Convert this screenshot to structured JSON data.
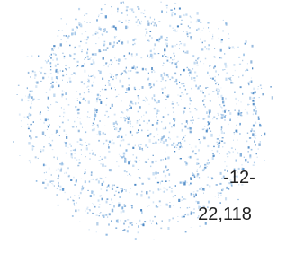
{
  "page_number": "-12-",
  "count": "22,118"
}
